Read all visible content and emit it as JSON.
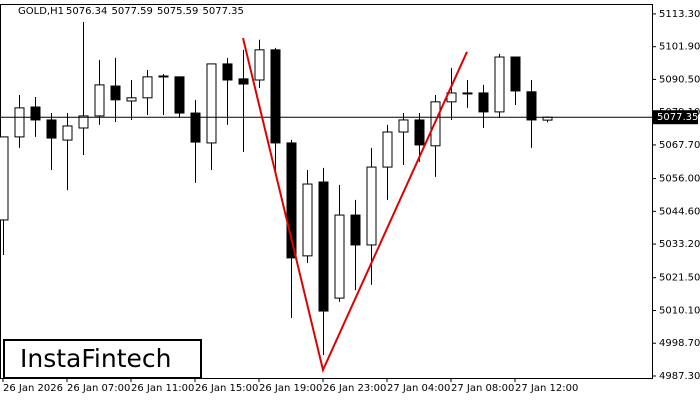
{
  "chart_data": {
    "type": "candlestick",
    "symbol": "GOLD,H1",
    "header_values": [
      5076.34,
      5077.59,
      5075.59,
      5077.35
    ],
    "categories": [
      "26 Jan 2026",
      null,
      null,
      null,
      "26 Jan 07:00",
      null,
      null,
      null,
      "26 Jan 11:00",
      null,
      null,
      null,
      "26 Jan 15:00",
      null,
      null,
      null,
      "26 Jan 19:00",
      null,
      null,
      null,
      "26 Jan 23:00",
      null,
      null,
      null,
      "27 Jan 04:00",
      null,
      null,
      null,
      "27 Jan 08:00",
      null,
      null,
      null,
      "27 Jan 12:00",
      null,
      null
    ],
    "open": [
      5041.6,
      5070.5,
      5080.9,
      5076.4,
      5069.4,
      5073.6,
      5077.8,
      5088.2,
      5083.0,
      5084.1,
      5091.4,
      5091.4,
      5078.8,
      5068.4,
      5095.9,
      5090.7,
      5090.3,
      5100.8,
      5068.4,
      5029.1,
      5054.8,
      5014.4,
      5043.3,
      5032.9,
      5060.0,
      5072.2,
      5076.4,
      5067.4,
      5082.7,
      5085.8,
      5085.8,
      5079.2,
      5098.3,
      5086.2,
      5076.34
    ],
    "high": [
      5070.5,
      5085.1,
      5084.4,
      5078.8,
      5078.8,
      5110.5,
      5097.3,
      5098.0,
      5090.3,
      5093.8,
      5092.4,
      5091.4,
      5083.4,
      5095.9,
      5098.0,
      5100.8,
      5104.3,
      5101.5,
      5069.4,
      5059.0,
      5059.7,
      5053.8,
      5048.6,
      5066.7,
      5074.7,
      5078.8,
      5078.8,
      5085.1,
      5094.5,
      5090.3,
      5088.6,
      5099.4,
      5098.3,
      5090.3,
      5077.59
    ],
    "low": [
      5029.4,
      5066.7,
      5070.5,
      5059.0,
      5052.0,
      5064.2,
      5074.7,
      5075.7,
      5076.4,
      5078.1,
      5078.1,
      5077.1,
      5054.5,
      5059.0,
      5074.7,
      5065.3,
      5087.5,
      5057.3,
      5007.5,
      5026.6,
      4994.6,
      5013.1,
      5017.2,
      5019.0,
      5048.6,
      5060.7,
      5061.8,
      5056.6,
      5076.4,
      5080.6,
      5073.6,
      5077.1,
      5081.6,
      5066.7,
      5075.59
    ],
    "close": [
      5070.5,
      5080.6,
      5076.4,
      5070.1,
      5074.3,
      5077.8,
      5088.6,
      5083.4,
      5084.1,
      5091.4,
      5091.7,
      5078.8,
      5068.7,
      5095.9,
      5090.3,
      5088.9,
      5100.8,
      5068.4,
      5028.4,
      5054.1,
      5009.9,
      5043.3,
      5032.9,
      5060.0,
      5072.2,
      5076.4,
      5067.7,
      5082.7,
      5085.8,
      5085.5,
      5079.2,
      5098.3,
      5086.5,
      5076.4,
      5077.35
    ],
    "up_color": "#ffffff",
    "down_color": "#000000",
    "current_price": 5077.35,
    "pattern_line": {
      "color": "#e00000",
      "x": [
        15,
        20,
        29
      ],
      "y": [
        5104.9,
        4989.4,
        5100.1
      ]
    },
    "ylim": [
      4986.6,
      5116.4
    ],
    "yticks": [
      {
        "value": 5113.3,
        "label": "5113.30"
      },
      {
        "value": 5101.9,
        "label": "5101.90"
      },
      {
        "value": 5090.5,
        "label": "5090.50"
      },
      {
        "value": 5079.1,
        "label": "5079.10"
      },
      {
        "value": 5067.7,
        "label": "5067.70"
      },
      {
        "value": 5056.0,
        "label": "5056.00"
      },
      {
        "value": 5044.6,
        "label": "5044.60"
      },
      {
        "value": 5033.2,
        "label": "5033.20"
      },
      {
        "value": 5021.5,
        "label": "5021.50"
      },
      {
        "value": 5010.1,
        "label": "5010.10"
      },
      {
        "value": 4998.7,
        "label": "4998.70"
      },
      {
        "value": 4987.3,
        "label": "4987.30"
      }
    ],
    "logo": "InstaFintech"
  }
}
